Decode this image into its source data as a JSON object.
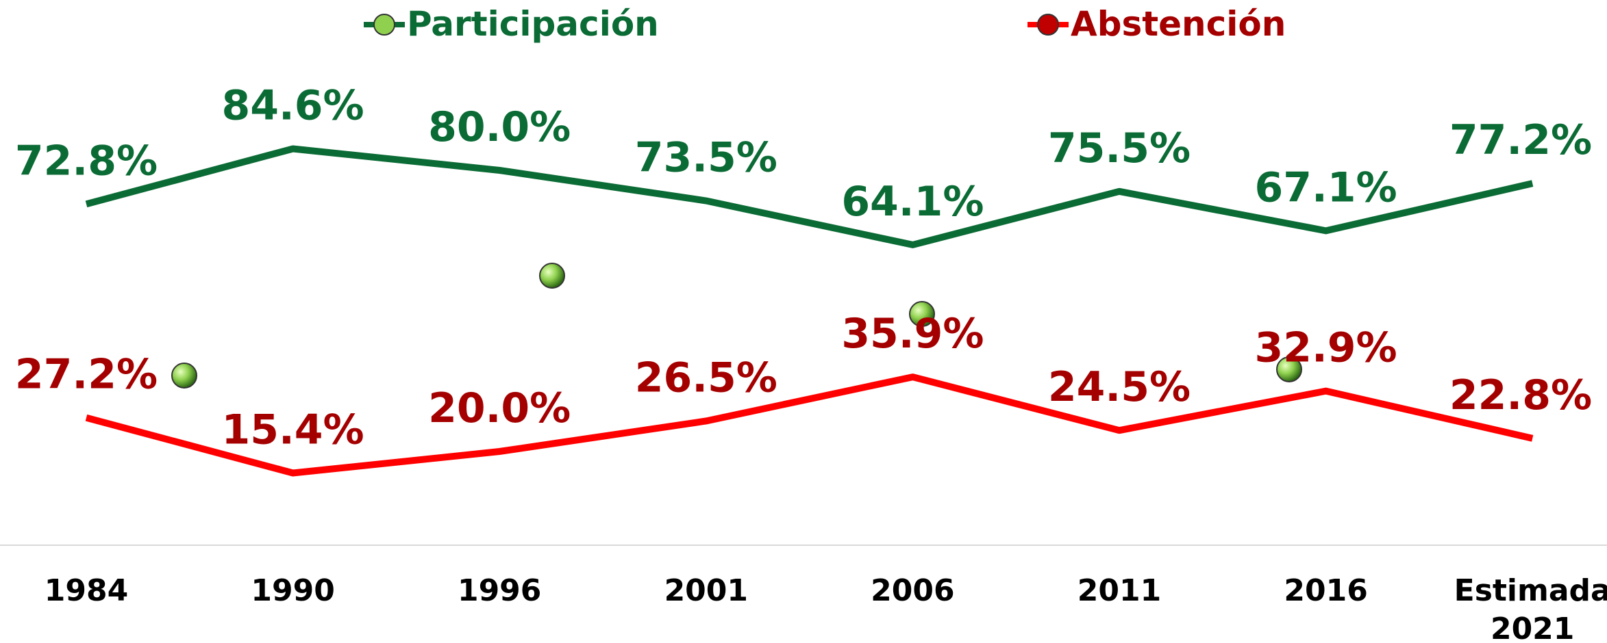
{
  "chart_data": {
    "type": "line",
    "categories": [
      "1984",
      "1990",
      "1996",
      "2001",
      "2006",
      "2011",
      "2016",
      "Estimada 2021"
    ],
    "ylim": [
      0,
      100
    ],
    "series": [
      {
        "name": "Participación",
        "color": "#0b6b35",
        "label_color": "#0b6b35",
        "marker_color": "#8fd14f",
        "values": [
          72.8,
          84.6,
          80.0,
          73.5,
          64.1,
          75.5,
          67.1,
          77.2
        ],
        "value_labels": [
          "72.8%",
          "84.6%",
          "80.0%",
          "73.5%",
          "64.1%",
          "75.5%",
          "67.1%",
          "77.2%"
        ]
      },
      {
        "name": "Abstención",
        "color": "#ff0000",
        "label_color": "#a50000",
        "marker_color": "#c00000",
        "values": [
          27.2,
          15.4,
          20.0,
          26.5,
          35.9,
          24.5,
          32.9,
          22.8
        ],
        "value_labels": [
          "27.2%",
          "15.4%",
          "20.0%",
          "26.5%",
          "35.9%",
          "24.5%",
          "32.9%",
          "22.8%"
        ]
      }
    ]
  }
}
